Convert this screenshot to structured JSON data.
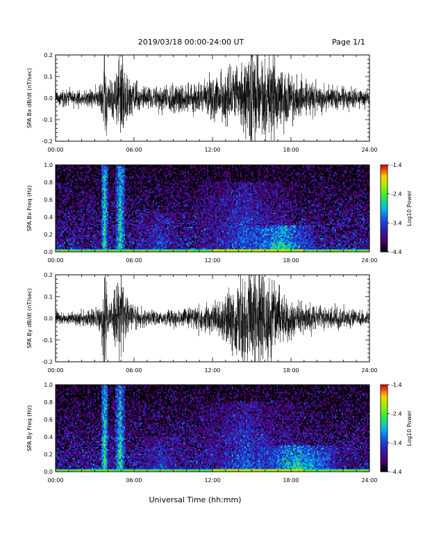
{
  "header": {
    "title": "2019/03/18  00:00-24:00 UT",
    "page": "Page 1/1"
  },
  "footer": {
    "xlabel": "Universal Time (hh:mm)"
  },
  "colorbar": {
    "label": "Log10 Power",
    "ticks": [
      "-1.4",
      "-2.4",
      "-3.4",
      "-4.4"
    ],
    "vmin": -4.4,
    "vmax": -1.4
  },
  "chart_data": [
    {
      "type": "line",
      "ylabel": "SPA Bx dB/dt (nT/sec)",
      "xlim": [
        0,
        24
      ],
      "ylim": [
        -0.2,
        0.2
      ],
      "xticks": [
        "00:00",
        "06:00",
        "12:00",
        "18:00",
        "24:00"
      ],
      "yticks": [
        "0.2",
        "0.1",
        "0.0",
        "-0.1",
        "-0.2"
      ],
      "envelope": {
        "x": [
          0,
          1,
          2,
          3,
          3.5,
          3.7,
          3.85,
          4.0,
          4.3,
          4.6,
          4.8,
          5.0,
          5.3,
          5.6,
          6.0,
          6.5,
          7,
          8,
          9,
          10,
          11,
          12,
          12.5,
          13,
          13.5,
          14,
          14.3,
          14.5,
          14.8,
          15.0,
          15.3,
          15.6,
          16.0,
          16.3,
          16.6,
          17.0,
          17.5,
          18.0,
          18.5,
          19,
          20,
          21,
          22,
          23,
          24
        ],
        "amplitude": [
          0.03,
          0.03,
          0.03,
          0.035,
          0.06,
          0.2,
          0.2,
          0.07,
          0.1,
          0.12,
          0.2,
          0.2,
          0.12,
          0.08,
          0.07,
          0.05,
          0.04,
          0.05,
          0.06,
          0.06,
          0.07,
          0.08,
          0.09,
          0.11,
          0.12,
          0.14,
          0.16,
          0.2,
          0.18,
          0.2,
          0.2,
          0.18,
          0.2,
          0.14,
          0.2,
          0.12,
          0.11,
          0.1,
          0.08,
          0.07,
          0.06,
          0.05,
          0.045,
          0.04,
          0.035
        ]
      }
    },
    {
      "type": "heatmap",
      "ylabel": "SPA Bx Freq (Hz)",
      "xlim": [
        0,
        24
      ],
      "ylim": [
        0,
        1.0
      ],
      "xticks": [
        "00:00",
        "06:00",
        "12:00",
        "18:00",
        "24:00"
      ],
      "yticks": [
        "1.0",
        "0.8",
        "0.6",
        "0.4",
        "0.2",
        "0.0"
      ],
      "background_power": -3.8,
      "features": [
        {
          "t": 3.75,
          "width_h": 0.25,
          "fmax": 1.0,
          "power": -2.4
        },
        {
          "t": 4.95,
          "width_h": 0.35,
          "fmax": 1.0,
          "power": -2.5
        },
        {
          "t": 17.2,
          "width_h": 2.5,
          "fmax": 0.3,
          "power": -2.6
        },
        {
          "t": 14.5,
          "width_h": 4.0,
          "fmax": 0.8,
          "power": -3.3
        },
        {
          "t": 8.0,
          "width_h": 2.0,
          "fmax": 0.45,
          "power": -3.4
        }
      ]
    },
    {
      "type": "line",
      "ylabel": "SPA By dB/dt (nT/sec)",
      "xlim": [
        0,
        24
      ],
      "ylim": [
        -0.2,
        0.2
      ],
      "xticks": [
        "00:00",
        "06:00",
        "12:00",
        "18:00",
        "24:00"
      ],
      "yticks": [
        "0.2",
        "0.1",
        "0.0",
        "-0.1",
        "-0.2"
      ],
      "envelope": {
        "x": [
          0,
          1,
          2,
          3,
          3.5,
          3.7,
          3.85,
          4.0,
          4.3,
          4.6,
          4.8,
          5.0,
          5.3,
          5.6,
          6.0,
          6.5,
          7,
          8,
          9,
          10,
          11,
          12,
          12.5,
          13,
          13.5,
          14,
          14.3,
          14.5,
          14.8,
          15.0,
          15.3,
          15.6,
          16.0,
          16.3,
          16.6,
          17.0,
          17.5,
          18.0,
          18.5,
          19,
          20,
          21,
          22,
          23,
          24
        ],
        "amplitude": [
          0.025,
          0.025,
          0.03,
          0.035,
          0.05,
          0.2,
          0.2,
          0.06,
          0.09,
          0.14,
          0.2,
          0.2,
          0.1,
          0.06,
          0.05,
          0.04,
          0.03,
          0.03,
          0.035,
          0.04,
          0.05,
          0.06,
          0.07,
          0.1,
          0.13,
          0.16,
          0.2,
          0.2,
          0.18,
          0.2,
          0.2,
          0.18,
          0.2,
          0.16,
          0.2,
          0.12,
          0.1,
          0.08,
          0.07,
          0.06,
          0.05,
          0.045,
          0.04,
          0.035,
          0.03
        ]
      }
    },
    {
      "type": "heatmap",
      "ylabel": "SPA By Freq (Hz)",
      "xlim": [
        0,
        24
      ],
      "ylim": [
        0,
        1.0
      ],
      "xticks": [
        "00:00",
        "06:00",
        "12:00",
        "18:00",
        "24:00"
      ],
      "yticks": [
        "1.0",
        "0.8",
        "0.6",
        "0.4",
        "0.2",
        "0.0"
      ],
      "background_power": -3.8,
      "features": [
        {
          "t": 3.75,
          "width_h": 0.25,
          "fmax": 1.0,
          "power": -2.4
        },
        {
          "t": 4.95,
          "width_h": 0.35,
          "fmax": 1.0,
          "power": -2.5
        },
        {
          "t": 18.5,
          "width_h": 3.0,
          "fmax": 0.3,
          "power": -2.6
        },
        {
          "t": 14.5,
          "width_h": 4.0,
          "fmax": 0.8,
          "power": -3.3
        },
        {
          "t": 8.0,
          "width_h": 2.0,
          "fmax": 0.4,
          "power": -3.4
        }
      ]
    }
  ]
}
